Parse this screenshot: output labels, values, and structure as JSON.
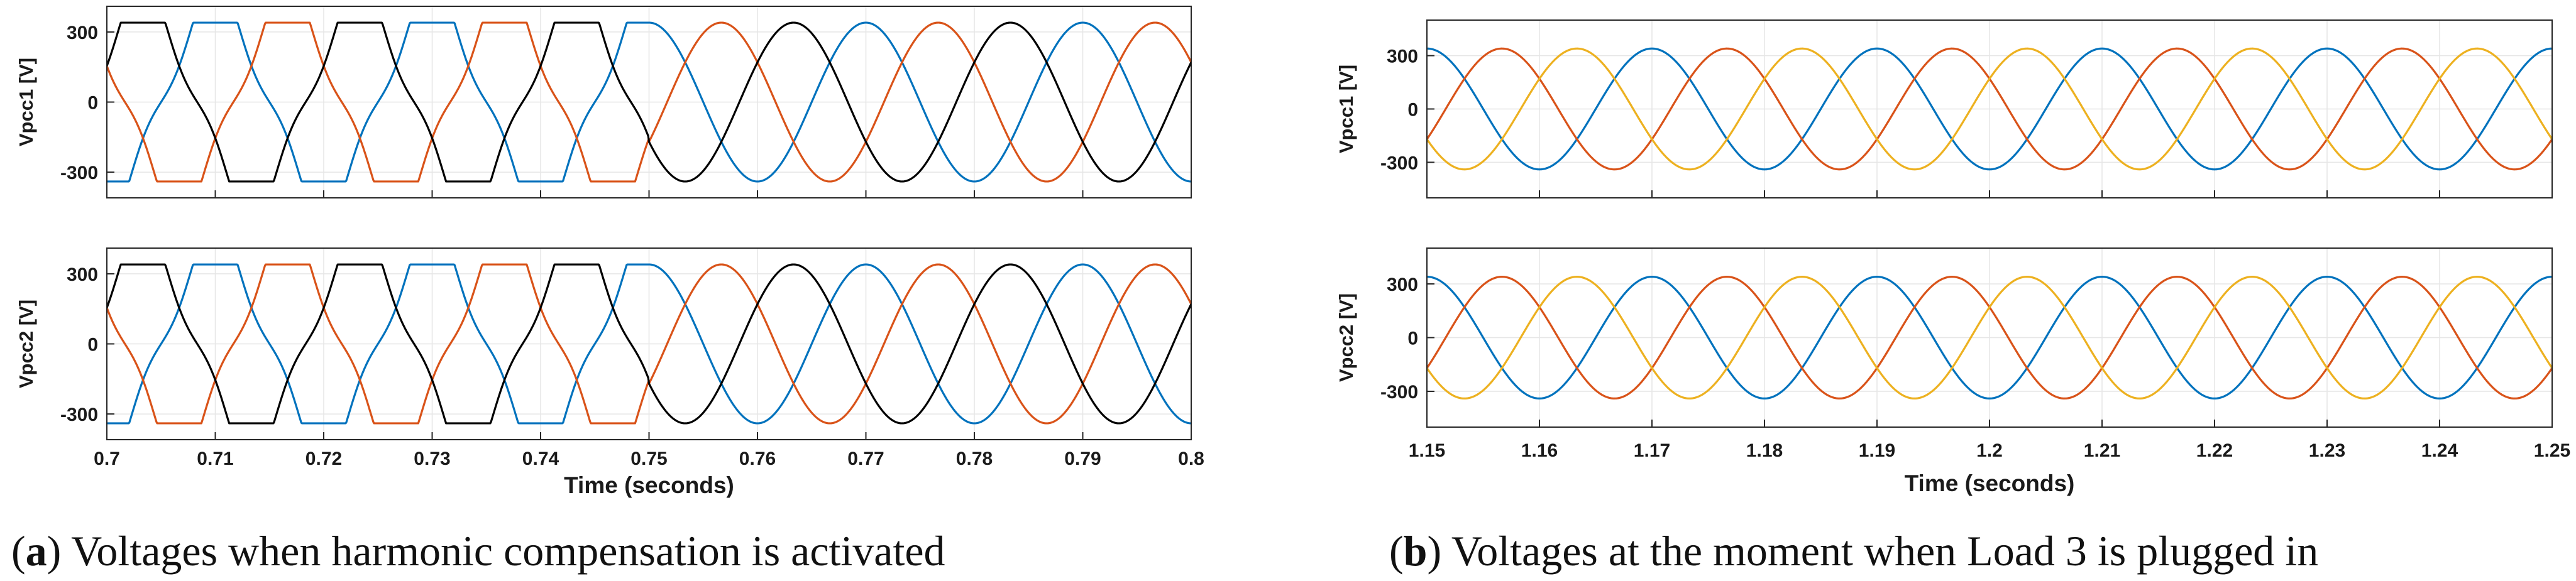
{
  "chart_data": [
    {
      "id": "a",
      "type": "line",
      "caption_label": "a",
      "caption_text": "Voltages when harmonic compensation is activated",
      "xlabel": "Time (seconds)",
      "xlim": [
        0.7,
        0.8
      ],
      "xticks": [
        0.7,
        0.71,
        0.72,
        0.73,
        0.74,
        0.75,
        0.76,
        0.77,
        0.78,
        0.79,
        0.8
      ],
      "xtick_labels": [
        "0.7",
        "0.71",
        "0.72",
        "0.73",
        "0.74",
        "0.75",
        "0.76",
        "0.77",
        "0.78",
        "0.79",
        "0.8"
      ],
      "grid": true,
      "event_time": 0.75,
      "frequency_hz": 50,
      "amplitude_v": 340,
      "distorted_before_event": true,
      "series_colors": [
        "#0072BD",
        "#D95319",
        "#000000"
      ],
      "subplots": [
        {
          "ylabel": "Vpcc1 [V]",
          "ylim": [
            -410,
            410
          ],
          "yticks": [
            -300,
            0,
            300
          ],
          "ytick_labels": [
            "-300",
            "0",
            "300"
          ],
          "phase_shift_deg": [
            -90,
            150,
            30
          ]
        },
        {
          "ylabel": "Vpcc2 [V]",
          "ylim": [
            -410,
            410
          ],
          "yticks": [
            -300,
            0,
            300
          ],
          "ytick_labels": [
            "-300",
            "0",
            "300"
          ],
          "phase_shift_deg": [
            -90,
            150,
            30
          ]
        }
      ]
    },
    {
      "id": "b",
      "type": "line",
      "caption_label": "b",
      "caption_text": "Voltages at the moment when Load 3 is plugged in",
      "xlabel": "Time (seconds)",
      "xlim": [
        1.15,
        1.25
      ],
      "xticks": [
        1.15,
        1.16,
        1.17,
        1.18,
        1.19,
        1.2,
        1.21,
        1.22,
        1.23,
        1.24,
        1.25
      ],
      "xtick_labels": [
        "1.15",
        "1.16",
        "1.17",
        "1.18",
        "1.19",
        "1.2",
        "1.21",
        "1.22",
        "1.23",
        "1.24",
        "1.25"
      ],
      "grid": true,
      "frequency_hz": 50,
      "amplitude_v": 340,
      "series_colors": [
        "#0072BD",
        "#D95319",
        "#EDB120"
      ],
      "subplots": [
        {
          "ylabel": "Vpcc1 [V]",
          "ylim": [
            -500,
            500
          ],
          "yticks": [
            -300,
            0,
            300
          ],
          "ytick_labels": [
            "-300",
            "0",
            "300"
          ],
          "phase_shift_deg": [
            -90,
            150,
            30
          ]
        },
        {
          "ylabel": "Vpcc2 [V]",
          "ylim": [
            -500,
            500
          ],
          "yticks": [
            -300,
            0,
            300
          ],
          "ytick_labels": [
            "-300",
            "0",
            "300"
          ],
          "phase_shift_deg": [
            -90,
            150,
            30
          ]
        }
      ]
    }
  ]
}
